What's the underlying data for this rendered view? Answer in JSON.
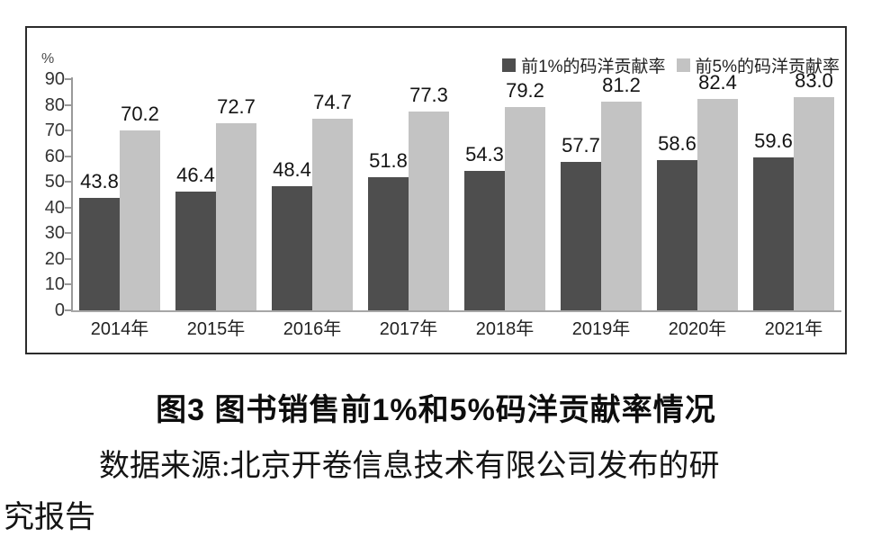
{
  "chart_data": {
    "type": "bar",
    "title": "",
    "categories": [
      "2014年",
      "2015年",
      "2016年",
      "2017年",
      "2018年",
      "2019年",
      "2020年",
      "2021年"
    ],
    "series": [
      {
        "name": "前1%的码洋贡献率",
        "color": "#4e4e4e",
        "values": [
          43.8,
          46.4,
          48.4,
          51.8,
          54.3,
          57.7,
          58.6,
          59.6
        ]
      },
      {
        "name": "前5%的码洋贡献率",
        "color": "#c3c3c3",
        "values": [
          70.2,
          72.7,
          74.7,
          77.3,
          79.2,
          81.2,
          82.4,
          83.0
        ]
      }
    ],
    "xlabel": "",
    "ylabel": "%",
    "ylim": [
      0,
      90
    ],
    "ytick_step": 10,
    "yticks": [
      0,
      10,
      20,
      30,
      40,
      50,
      60,
      70,
      80,
      90
    ],
    "grid": false,
    "legend_position": "top-right",
    "value_labels": true
  },
  "caption": {
    "title": "图3 图书销售前1%和5%码洋贡献率情况",
    "source_lines": [
      "数据来源:北京开卷信息技术有限公司发布的研",
      "究报告"
    ]
  }
}
